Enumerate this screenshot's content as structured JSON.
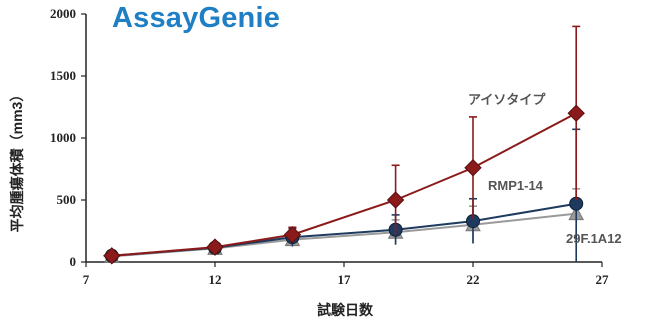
{
  "brand": {
    "name": "AssayGenie"
  },
  "chart_data": {
    "type": "line",
    "title": "",
    "xlabel": "試験日数",
    "ylabel": "平均腫瘍体積（mm3）",
    "xlim": [
      7,
      27
    ],
    "ylim": [
      0,
      2000
    ],
    "xticks": [
      7,
      12,
      17,
      22,
      27
    ],
    "yticks": [
      0,
      500,
      1000,
      1500,
      2000
    ],
    "grid": false,
    "series": [
      {
        "name": "アイソタイプ",
        "color": "#8b1a1a",
        "marker": "diamond",
        "x": [
          8,
          12,
          15,
          19,
          22,
          26
        ],
        "y": [
          50,
          120,
          220,
          500,
          760,
          1200
        ],
        "err": [
          20,
          25,
          60,
          280,
          410,
          700
        ]
      },
      {
        "name": "RMP1-14",
        "color": "#1f3a5f",
        "marker": "circle",
        "x": [
          8,
          12,
          15,
          19,
          22,
          26
        ],
        "y": [
          50,
          115,
          200,
          260,
          330,
          470
        ],
        "err": [
          20,
          25,
          70,
          120,
          180,
          600
        ]
      },
      {
        "name": "29F.1A12",
        "color": "#9a9a9a",
        "marker": "triangle",
        "x": [
          8,
          12,
          15,
          19,
          22,
          26
        ],
        "y": [
          45,
          110,
          180,
          240,
          300,
          390
        ],
        "err": [
          20,
          25,
          60,
          100,
          150,
          200
        ]
      }
    ]
  }
}
